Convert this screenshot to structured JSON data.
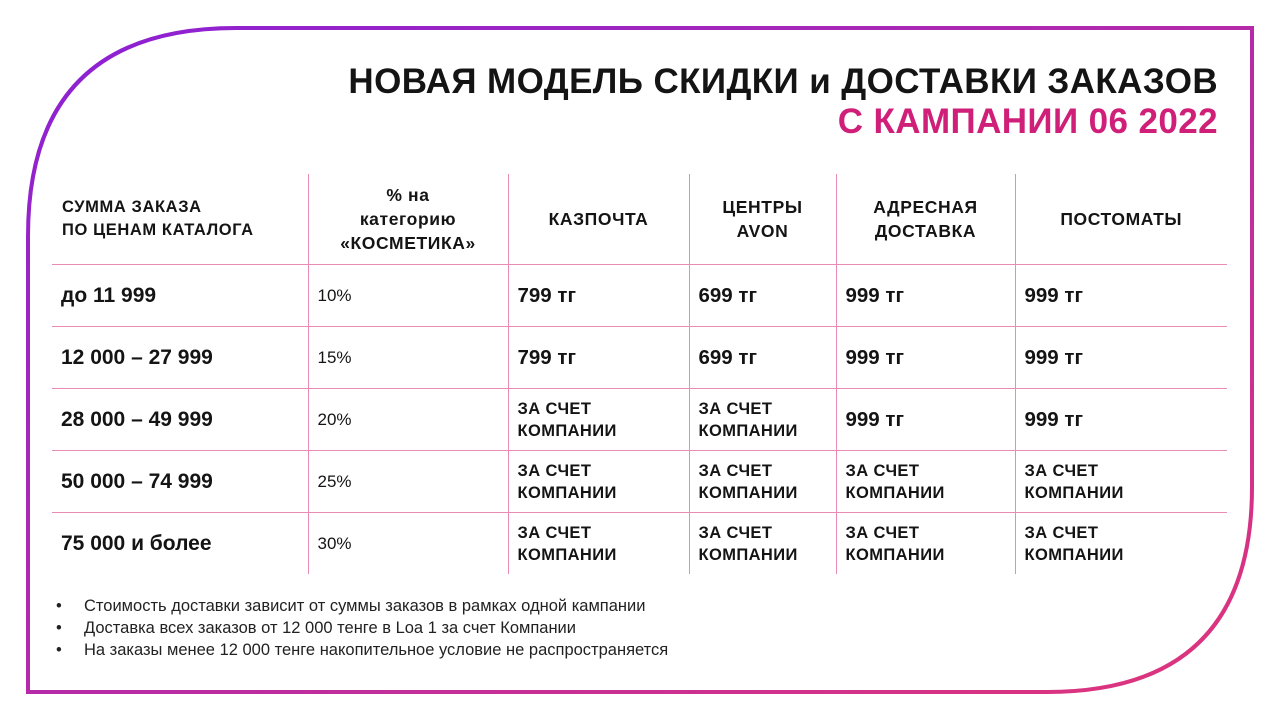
{
  "title": {
    "line1": "НОВАЯ МОДЕЛЬ СКИДКИ и ДОСТАВКИ ЗАКАЗОВ",
    "line2": "С КАМПАНИИ 06 2022"
  },
  "colors": {
    "accent": "#cf1f78",
    "frame_start": "#8a20d6",
    "frame_end": "#e0357a",
    "grid_line": "#e98bb4"
  },
  "table": {
    "headers": [
      [
        "СУММА  ЗАКАЗА",
        "ПО ЦЕНАМ КАТАЛОГА"
      ],
      [
        "% на",
        "категорию",
        "«КОСМЕТИКА»"
      ],
      [
        "КАЗПОЧТА"
      ],
      [
        "ЦЕНТРЫ",
        "AVON"
      ],
      [
        "АДРЕСНАЯ",
        "ДОСТАВКА"
      ],
      [
        "ПОСТОМАТЫ"
      ]
    ],
    "rows": [
      {
        "amount": "до 11 999",
        "percent": "10%",
        "cells": [
          [
            "799 тг"
          ],
          [
            "699 тг"
          ],
          [
            "999 тг"
          ],
          [
            "999 тг"
          ]
        ]
      },
      {
        "amount": "12 000 – 27 999",
        "percent": "15%",
        "cells": [
          [
            "799 тг"
          ],
          [
            "699 тг"
          ],
          [
            "999 тг"
          ],
          [
            "999 тг"
          ]
        ]
      },
      {
        "amount": "28 000 – 49 999",
        "percent": "20%",
        "cells": [
          [
            "ЗА СЧЕТ",
            "КОМПАНИИ"
          ],
          [
            "ЗА СЧЕТ",
            "КОМПАНИИ"
          ],
          [
            "999 тг"
          ],
          [
            "999 тг"
          ]
        ]
      },
      {
        "amount": "50 000 – 74 999",
        "percent": "25%",
        "cells": [
          [
            "ЗА СЧЕТ",
            "КОМПАНИИ"
          ],
          [
            "ЗА СЧЕТ",
            "КОМПАНИИ"
          ],
          [
            "ЗА СЧЕТ",
            "КОМПАНИИ"
          ],
          [
            "ЗА СЧЕТ",
            "КОМПАНИИ"
          ]
        ]
      },
      {
        "amount": "75 000 и более",
        "percent": "30%",
        "cells": [
          [
            "ЗА СЧЕТ",
            "КОМПАНИИ"
          ],
          [
            "ЗА СЧЕТ",
            "КОМПАНИИ"
          ],
          [
            "ЗА СЧЕТ",
            "КОМПАНИИ"
          ],
          [
            "ЗА СЧЕТ",
            "КОМПАНИИ"
          ]
        ]
      }
    ]
  },
  "notes": {
    "bullet": "•",
    "items": [
      "Стоимость доставки зависит от суммы заказов в рамках одной кампании",
      "Доставка всех заказов от 12 000 тенге в Loa 1 за счет Компании",
      "На заказы менее 12 000 тенге накопительное условие не распространяется"
    ]
  }
}
